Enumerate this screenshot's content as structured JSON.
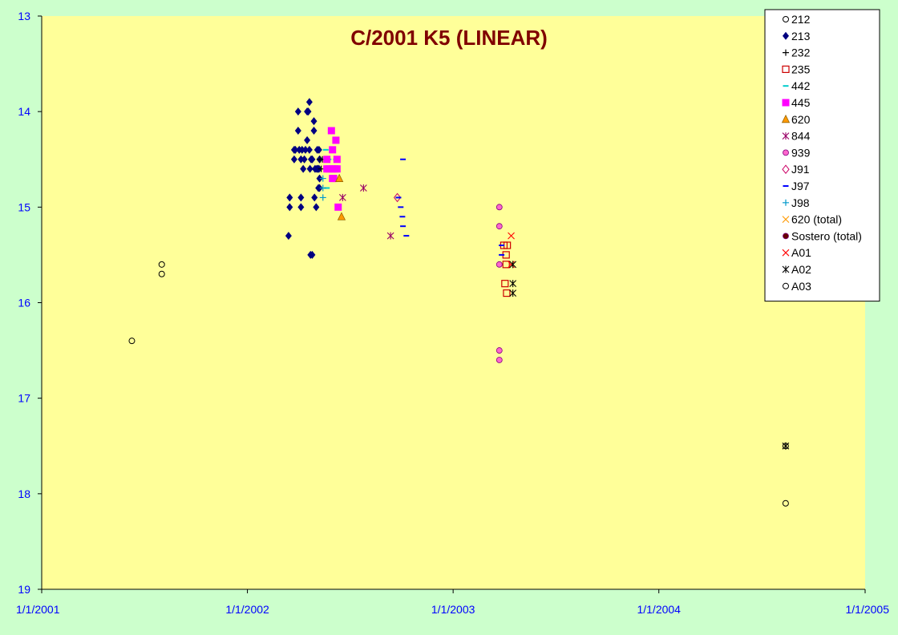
{
  "chart_data": {
    "type": "scatter",
    "title": "C/2001 K5 (LINEAR)",
    "xlabel": "",
    "ylabel": "",
    "x_is_date": true,
    "xlim": [
      "2001-01-01",
      "2005-01-01"
    ],
    "ylim": [
      13,
      19
    ],
    "y_inverted": true,
    "x_ticks": [
      "1/1/2001",
      "1/1/2002",
      "1/1/2003",
      "1/1/2004",
      "1/1/2005"
    ],
    "x_tick_dates": [
      "2001-01-01",
      "2002-01-01",
      "2003-01-01",
      "2004-01-01",
      "2005-01-01"
    ],
    "y_ticks": [
      "13",
      "14",
      "15",
      "16",
      "17",
      "18",
      "19"
    ],
    "grid": false,
    "legend_position": "top-right",
    "plot_background": "#ffff99",
    "outer_background": "#ccffcc",
    "series": [
      {
        "name": "212",
        "marker": "circle-open",
        "color": "#000000",
        "points": []
      },
      {
        "name": "213",
        "marker": "diamond-filled",
        "color": "#000080",
        "points": [
          [
            "2002-03-15",
            15.3
          ],
          [
            "2002-03-17",
            15.0
          ],
          [
            "2002-03-17",
            14.9
          ],
          [
            "2002-03-25",
            14.4
          ],
          [
            "2002-03-25",
            14.5
          ],
          [
            "2002-03-27",
            14.4
          ],
          [
            "2002-04-01",
            14.2
          ],
          [
            "2002-04-01",
            14.0
          ],
          [
            "2002-04-03",
            14.4
          ],
          [
            "2002-04-06",
            14.9
          ],
          [
            "2002-04-06",
            15.0
          ],
          [
            "2002-04-06",
            14.5
          ],
          [
            "2002-04-08",
            14.4
          ],
          [
            "2002-04-10",
            14.6
          ],
          [
            "2002-04-12",
            14.5
          ],
          [
            "2002-04-14",
            14.4
          ],
          [
            "2002-04-17",
            14.3
          ],
          [
            "2002-04-17",
            14.0
          ],
          [
            "2002-04-19",
            14.0
          ],
          [
            "2002-04-21",
            14.4
          ],
          [
            "2002-04-21",
            13.9
          ],
          [
            "2002-04-22",
            14.6
          ],
          [
            "2002-04-23",
            15.5
          ],
          [
            "2002-04-24",
            14.5
          ],
          [
            "2002-04-26",
            14.5
          ],
          [
            "2002-04-26",
            15.5
          ],
          [
            "2002-04-29",
            14.1
          ],
          [
            "2002-04-29",
            14.2
          ],
          [
            "2002-04-30",
            14.9
          ],
          [
            "2002-05-01",
            14.6
          ],
          [
            "2002-05-03",
            15.0
          ],
          [
            "2002-05-04",
            14.6
          ],
          [
            "2002-05-05",
            14.4
          ],
          [
            "2002-05-06",
            14.6
          ],
          [
            "2002-05-07",
            14.8
          ],
          [
            "2002-05-08",
            14.6
          ],
          [
            "2002-05-08",
            14.4
          ],
          [
            "2002-05-09",
            14.7
          ],
          [
            "2002-05-09",
            14.8
          ],
          [
            "2002-05-09",
            14.5
          ]
        ]
      },
      {
        "name": "232",
        "marker": "plus",
        "color": "#000000",
        "points": [
          [
            "2002-05-10",
            14.5
          ],
          [
            "2002-05-12",
            14.6
          ],
          [
            "2002-05-14",
            14.5
          ]
        ]
      },
      {
        "name": "235",
        "marker": "square-open",
        "color": "#cc0000",
        "points": [
          [
            "2003-04-01",
            15.4
          ],
          [
            "2003-04-03",
            15.8
          ],
          [
            "2003-04-05",
            15.5
          ],
          [
            "2003-04-05",
            15.6
          ],
          [
            "2003-04-06",
            15.9
          ],
          [
            "2003-04-07",
            15.4
          ]
        ]
      },
      {
        "name": "442",
        "marker": "dash",
        "color": "#00cccc",
        "points": [
          [
            "2002-05-20",
            14.4
          ],
          [
            "2002-05-22",
            14.8
          ],
          [
            "2002-05-25",
            14.5
          ],
          [
            "2002-06-07",
            14.5
          ]
        ]
      },
      {
        "name": "445",
        "marker": "square-filled",
        "color": "#ff00ff",
        "points": [
          [
            "2002-05-22",
            14.5
          ],
          [
            "2002-05-22",
            14.6
          ],
          [
            "2002-05-26",
            14.6
          ],
          [
            "2002-05-30",
            14.2
          ],
          [
            "2002-06-01",
            14.4
          ],
          [
            "2002-06-01",
            14.6
          ],
          [
            "2002-06-01",
            14.7
          ],
          [
            "2002-06-03",
            14.7
          ],
          [
            "2002-06-05",
            14.6
          ],
          [
            "2002-06-07",
            14.3
          ],
          [
            "2002-06-09",
            14.6
          ],
          [
            "2002-06-09",
            14.5
          ],
          [
            "2002-06-11",
            15.0
          ]
        ]
      },
      {
        "name": "620",
        "marker": "triangle",
        "color": "#ff9900",
        "points": [
          [
            "2002-06-13",
            14.7
          ],
          [
            "2002-06-17",
            15.1
          ]
        ]
      },
      {
        "name": "844",
        "marker": "asterisk",
        "color": "#990066",
        "points": [
          [
            "2002-06-19",
            14.9
          ],
          [
            "2002-07-26",
            14.8
          ],
          [
            "2002-09-12",
            15.3
          ]
        ]
      },
      {
        "name": "939",
        "marker": "circle-filled",
        "color": "#ff66cc",
        "points": [
          [
            "2003-03-24",
            15.0
          ],
          [
            "2003-03-24",
            15.2
          ],
          [
            "2003-03-24",
            15.6
          ],
          [
            "2003-03-24",
            16.5
          ],
          [
            "2003-03-24",
            16.6
          ]
        ]
      },
      {
        "name": "J91",
        "marker": "diamond-open",
        "color": "#cc0066",
        "points": [
          [
            "2002-09-24",
            14.9
          ]
        ]
      },
      {
        "name": "J97",
        "marker": "dash",
        "color": "#0000ff",
        "points": [
          [
            "2002-10-04",
            14.5
          ],
          [
            "2002-09-26",
            14.9
          ],
          [
            "2002-09-30",
            15.0
          ],
          [
            "2002-10-03",
            15.1
          ],
          [
            "2002-10-04",
            15.2
          ],
          [
            "2002-10-10",
            15.3
          ],
          [
            "2003-03-28",
            15.4
          ],
          [
            "2003-03-28",
            15.5
          ]
        ]
      },
      {
        "name": "J98",
        "marker": "plus",
        "color": "#0099cc",
        "points": [
          [
            "2002-05-15",
            14.7
          ],
          [
            "2002-05-15",
            14.8
          ],
          [
            "2002-05-15",
            14.9
          ]
        ]
      },
      {
        "name": "620 (total)",
        "marker": "x",
        "color": "#ff9900",
        "points": []
      },
      {
        "name": "Sostero (total)",
        "marker": "circle-filled",
        "color": "#660000",
        "points": []
      },
      {
        "name": "A01",
        "marker": "x",
        "color": "#ff0000",
        "points": [
          [
            "2003-04-14",
            15.3
          ],
          [
            "2003-04-14",
            15.6
          ]
        ]
      },
      {
        "name": "A02",
        "marker": "asterisk",
        "color": "#000000",
        "points": [
          [
            "2003-04-17",
            15.6
          ],
          [
            "2003-04-17",
            15.8
          ],
          [
            "2003-04-17",
            15.9
          ],
          [
            "2004-08-13",
            17.5
          ]
        ]
      },
      {
        "name": "A03",
        "marker": "circle-open",
        "color": "#000000",
        "points": [
          [
            "2001-06-10",
            16.4
          ],
          [
            "2001-08-02",
            15.6
          ],
          [
            "2001-08-02",
            15.7
          ],
          [
            "2004-08-13",
            17.5
          ],
          [
            "2004-08-13",
            18.1
          ]
        ]
      }
    ]
  }
}
